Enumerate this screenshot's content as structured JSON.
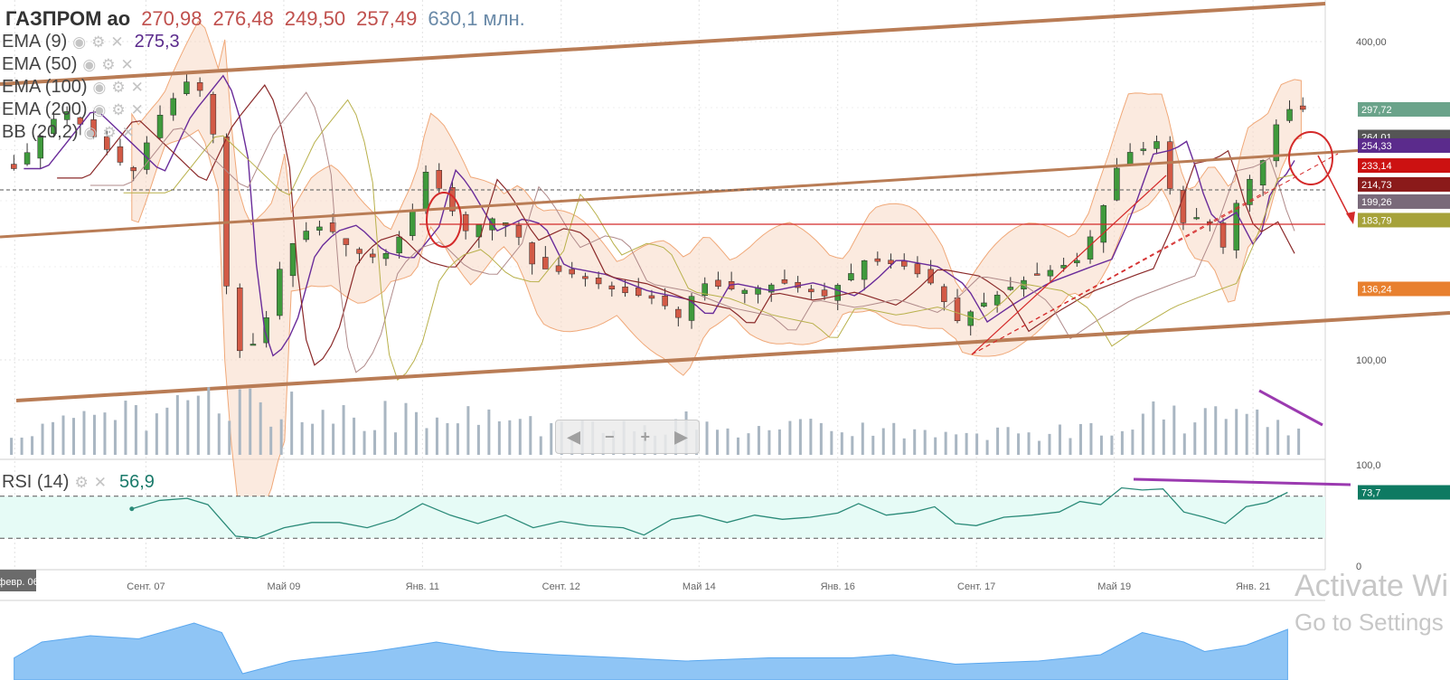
{
  "header": {
    "ticker": "ГАЗПРОМ ао",
    "open": "270,98",
    "high": "276,48",
    "low": "249,50",
    "close": "257,49",
    "volume": "630,1 млн."
  },
  "indicators": [
    {
      "label": "EMA (9)",
      "value": "275,3"
    },
    {
      "label": "EMA (50)",
      "value": ""
    },
    {
      "label": "EMA (100)",
      "value": ""
    },
    {
      "label": "EMA (200)",
      "value": ""
    },
    {
      "label": "BB (20,2)",
      "value": ""
    }
  ],
  "rsi_legend": {
    "label": "RSI (14)",
    "value": "56,9"
  },
  "navigation": {
    "left": "◀",
    "minus": "−",
    "plus": "+",
    "right": "▶"
  },
  "watermark": {
    "line1": "Activate Wi",
    "line2": "Go to Settings"
  },
  "icons": {
    "visibility": "eye-icon",
    "settings": "gear-icon",
    "remove": "close-icon"
  },
  "colors": {
    "up_candle": "#3f9a3c",
    "down_candle": "#d25a46",
    "channel": "#b97c55",
    "bollinger": "#f7d8c4",
    "volume_bar": "#a9b6c2",
    "rsi_line": "#2a8a78",
    "rsi_band": "#e6fbf6",
    "overview_area": "#8fc5f5",
    "annotation": "#d42a2a",
    "divergence": "#9b3ab0"
  },
  "chart_data": [
    {
      "type": "candlestick",
      "scale": "log",
      "ylim": [
        70,
        600
      ],
      "y_ticks": [
        "400,00",
        "100,00"
      ],
      "x_ticks": [
        "февр. 06",
        "Сент. 07",
        "Май 09",
        "Янв. 11",
        "Сент. 12",
        "Май 14",
        "Янв. 16",
        "Сент. 17",
        "Май 19",
        "Янв. 21"
      ],
      "price_levels": [
        {
          "label": "297,72",
          "value": 297.72,
          "color": "#6aa38a"
        },
        {
          "label": "264,01",
          "value": 264.01,
          "color": "#555555"
        },
        {
          "label": "254,33",
          "value": 254.33,
          "color": "#5b2b8c"
        },
        {
          "label": "233,14",
          "value": 233.14,
          "color": "#cc1111"
        },
        {
          "label": "214,73",
          "value": 214.73,
          "color": "#8b1a1a"
        },
        {
          "label": "199,26",
          "value": 199.26,
          "color": "#7a6a7a"
        },
        {
          "label": "183,79",
          "value": 183.79,
          "color": "#a6a23a"
        },
        {
          "label": "136,24",
          "value": 136.24,
          "color": "#e8802f"
        }
      ],
      "close_path": [
        [
          "2006-03",
          230
        ],
        [
          "2006-10",
          300
        ],
        [
          "2007-03",
          260
        ],
        [
          "2007-08",
          225
        ],
        [
          "2007-12",
          290
        ],
        [
          "2008-05",
          350
        ],
        [
          "2008-08",
          260
        ],
        [
          "2008-10",
          120
        ],
        [
          "2008-12",
          100
        ],
        [
          "2009-03",
          115
        ],
        [
          "2009-06",
          160
        ],
        [
          "2009-09",
          175
        ],
        [
          "2009-12",
          180
        ],
        [
          "2010-04",
          160
        ],
        [
          "2010-08",
          155
        ],
        [
          "2010-12",
          180
        ],
        [
          "2011-02",
          230
        ],
        [
          "2011-04",
          215
        ],
        [
          "2011-08",
          175
        ],
        [
          "2011-12",
          185
        ],
        [
          "2012-03",
          180
        ],
        [
          "2012-06",
          150
        ],
        [
          "2012-12",
          145
        ],
        [
          "2013-06",
          135
        ],
        [
          "2013-12",
          130
        ],
        [
          "2014-03",
          120
        ],
        [
          "2014-06",
          140
        ],
        [
          "2014-12",
          135
        ],
        [
          "2015-06",
          140
        ],
        [
          "2015-12",
          132
        ],
        [
          "2016-03",
          142
        ],
        [
          "2016-06",
          155
        ],
        [
          "2016-12",
          150
        ],
        [
          "2017-04",
          138
        ],
        [
          "2017-07",
          118
        ],
        [
          "2017-11",
          128
        ],
        [
          "2018-04",
          140
        ],
        [
          "2018-10",
          150
        ],
        [
          "2019-01",
          155
        ],
        [
          "2019-04",
          190
        ],
        [
          "2019-07",
          245
        ],
        [
          "2019-10",
          250
        ],
        [
          "2019-12",
          260
        ],
        [
          "2020-02",
          210
        ],
        [
          "2020-04",
          180
        ],
        [
          "2020-07",
          190
        ],
        [
          "2020-10",
          160
        ],
        [
          "2020-12",
          210
        ],
        [
          "2021-03",
          230
        ],
        [
          "2021-05",
          275
        ],
        [
          "2021-07",
          297.72
        ]
      ]
    },
    {
      "type": "line",
      "name": "RSI (14)",
      "ylim": [
        0,
        100
      ],
      "y_ticks": [
        "100,0",
        "0"
      ],
      "levels": [
        70,
        30
      ],
      "current": "73,7",
      "values": [
        [
          "2007-07",
          58
        ],
        [
          "2007-11",
          66
        ],
        [
          "2008-03",
          68
        ],
        [
          "2008-06",
          62
        ],
        [
          "2008-10",
          32
        ],
        [
          "2009-01",
          30
        ],
        [
          "2009-05",
          40
        ],
        [
          "2009-09",
          45
        ],
        [
          "2010-01",
          45
        ],
        [
          "2010-05",
          40
        ],
        [
          "2010-09",
          48
        ],
        [
          "2011-01",
          63
        ],
        [
          "2011-05",
          52
        ],
        [
          "2011-09",
          44
        ],
        [
          "2012-01",
          52
        ],
        [
          "2012-05",
          40
        ],
        [
          "2012-09",
          46
        ],
        [
          "2013-01",
          42
        ],
        [
          "2013-06",
          40
        ],
        [
          "2013-09",
          33
        ],
        [
          "2014-01",
          48
        ],
        [
          "2014-05",
          52
        ],
        [
          "2014-09",
          45
        ],
        [
          "2015-01",
          52
        ],
        [
          "2015-05",
          48
        ],
        [
          "2015-09",
          50
        ],
        [
          "2016-01",
          54
        ],
        [
          "2016-04",
          63
        ],
        [
          "2016-08",
          52
        ],
        [
          "2016-12",
          55
        ],
        [
          "2017-03",
          60
        ],
        [
          "2017-06",
          44
        ],
        [
          "2017-09",
          42
        ],
        [
          "2018-01",
          50
        ],
        [
          "2018-05",
          52
        ],
        [
          "2018-09",
          55
        ],
        [
          "2018-12",
          65
        ],
        [
          "2019-03",
          62
        ],
        [
          "2019-06",
          78
        ],
        [
          "2019-09",
          76
        ],
        [
          "2019-12",
          77
        ],
        [
          "2020-03",
          55
        ],
        [
          "2020-06",
          50
        ],
        [
          "2020-09",
          44
        ],
        [
          "2020-12",
          60
        ],
        [
          "2021-03",
          64
        ],
        [
          "2021-06",
          73.7
        ]
      ]
    },
    {
      "type": "bar",
      "name": "volume",
      "ylim": [
        0,
        100
      ],
      "values": [
        [
          "2006",
          35
        ],
        [
          "2007",
          45
        ],
        [
          "2008",
          65
        ],
        [
          "2009",
          70
        ],
        [
          "2010",
          50
        ],
        [
          "2011",
          55
        ],
        [
          "2012",
          42
        ],
        [
          "2013",
          38
        ],
        [
          "2014",
          45
        ],
        [
          "2015",
          40
        ],
        [
          "2016",
          35
        ],
        [
          "2017",
          30
        ],
        [
          "2018",
          28
        ],
        [
          "2019",
          40
        ],
        [
          "2020",
          55
        ],
        [
          "2021",
          45
        ]
      ]
    },
    {
      "type": "area",
      "name": "overview",
      "ylim": [
        0,
        100
      ],
      "values": [
        [
          "2006-02",
          35
        ],
        [
          "2006-06",
          60
        ],
        [
          "2007-01",
          70
        ],
        [
          "2007-08",
          65
        ],
        [
          "2008-04",
          90
        ],
        [
          "2008-08",
          75
        ],
        [
          "2008-11",
          10
        ],
        [
          "2009-06",
          30
        ],
        [
          "2010-06",
          45
        ],
        [
          "2011-03",
          60
        ],
        [
          "2011-12",
          45
        ],
        [
          "2012-08",
          40
        ],
        [
          "2013-06",
          35
        ],
        [
          "2014-03",
          30
        ],
        [
          "2015-03",
          35
        ],
        [
          "2016-03",
          35
        ],
        [
          "2016-09",
          40
        ],
        [
          "2017-06",
          25
        ],
        [
          "2018-06",
          30
        ],
        [
          "2019-03",
          40
        ],
        [
          "2019-09",
          75
        ],
        [
          "2020-03",
          60
        ],
        [
          "2020-06",
          45
        ],
        [
          "2020-12",
          55
        ],
        [
          "2021-06",
          80
        ]
      ]
    }
  ]
}
